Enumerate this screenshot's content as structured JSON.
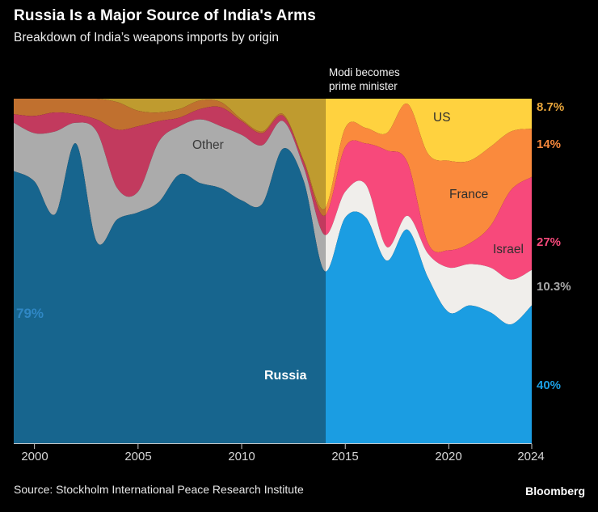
{
  "header": {
    "title": "Russia Is a Major Source of India's Arms",
    "subtitle": "Breakdown of India’s weapons imports by origin"
  },
  "annotation": {
    "line1": "Modi becomes",
    "line2": "prime minister"
  },
  "chart_data": {
    "type": "area",
    "stacked": true,
    "units": "percent of total",
    "x_range": [
      1999,
      2024
    ],
    "ylim": [
      0,
      100
    ],
    "grid": false,
    "dim_before_year": 2014.05,
    "years": [
      1999,
      2000,
      2001,
      2002,
      2003,
      2004,
      2005,
      2006,
      2007,
      2008,
      2009,
      2010,
      2011,
      2012,
      2013,
      2014,
      2015,
      2016,
      2017,
      2018,
      2019,
      2020,
      2021,
      2022,
      2023,
      2024
    ],
    "series": [
      {
        "name": "US",
        "color": "#ffd23f",
        "dim_color": "#bf9b2f",
        "values": [
          0,
          0,
          0,
          0,
          0,
          1,
          3.5,
          4,
          3,
          0.5,
          1,
          6,
          9.5,
          4.5,
          18,
          32,
          8.5,
          8.5,
          10,
          1.5,
          16,
          18,
          18,
          14,
          9.5,
          8.7
        ]
      },
      {
        "name": "France",
        "color": "#fa8a3d",
        "dim_color": "#c0702f",
        "values": [
          4.5,
          5,
          4,
          4.5,
          6,
          8,
          4.5,
          2.5,
          2.5,
          2.5,
          1.5,
          0.5,
          0.5,
          0.5,
          0.5,
          2,
          5.5,
          4.5,
          5,
          17,
          26,
          26,
          24,
          23,
          17,
          14
        ]
      },
      {
        "name": "Israel",
        "color": "#f7497b",
        "dim_color": "#c23a5e",
        "values": [
          2.5,
          5,
          5.5,
          2.5,
          3.5,
          17,
          19,
          6,
          2.5,
          3,
          5.5,
          4,
          3.5,
          1.5,
          1.5,
          5.5,
          13,
          12,
          28,
          15.5,
          3,
          5,
          6,
          12,
          26,
          27
        ]
      },
      {
        "name": "Other",
        "color": "#f0eeeb",
        "dim_color": "#ababab",
        "values": [
          14,
          14,
          24,
          6,
          32,
          9,
          6,
          17.5,
          14,
          18.5,
          18,
          19,
          17,
          8,
          4,
          10.5,
          7.5,
          9.5,
          4,
          4,
          7,
          13,
          12,
          13,
          13,
          10.3
        ]
      },
      {
        "name": "Russia",
        "color": "#1b9de2",
        "dim_color": "#17658e",
        "values": [
          79,
          76,
          66.5,
          87,
          58.5,
          65,
          67,
          70,
          78,
          75.5,
          74,
          70.5,
          69.5,
          85.5,
          76,
          50,
          65.5,
          65.5,
          53,
          62,
          48,
          38,
          40,
          38,
          34.5,
          40
        ]
      }
    ],
    "start_label": {
      "text": "79%",
      "color": "#2f87c4",
      "series": "Russia",
      "year": 1999
    },
    "end_labels": [
      {
        "text": "8.7%",
        "color": "#e9a63b",
        "series": "US"
      },
      {
        "text": "14%",
        "color": "#f8883c",
        "series": "France"
      },
      {
        "text": "27%",
        "color": "#f7497b",
        "series": "Israel"
      },
      {
        "text": "10.3%",
        "color": "#a8a8a8",
        "series": "Other"
      },
      {
        "text": "40%",
        "color": "#1b9de2",
        "series": "Russia"
      }
    ],
    "xticks": [
      {
        "year": 2000,
        "label": "2000"
      },
      {
        "year": 2005,
        "label": "2005"
      },
      {
        "year": 2010,
        "label": "2010"
      },
      {
        "year": 2015,
        "label": "2015"
      },
      {
        "year": 2020,
        "label": "2020"
      },
      {
        "year": 2024,
        "label": "2024"
      }
    ],
    "axis_color": "#c8c8c8"
  },
  "footer": {
    "source": "Source: Stockholm International Peace Research Institute",
    "logo": "Bloomberg"
  }
}
